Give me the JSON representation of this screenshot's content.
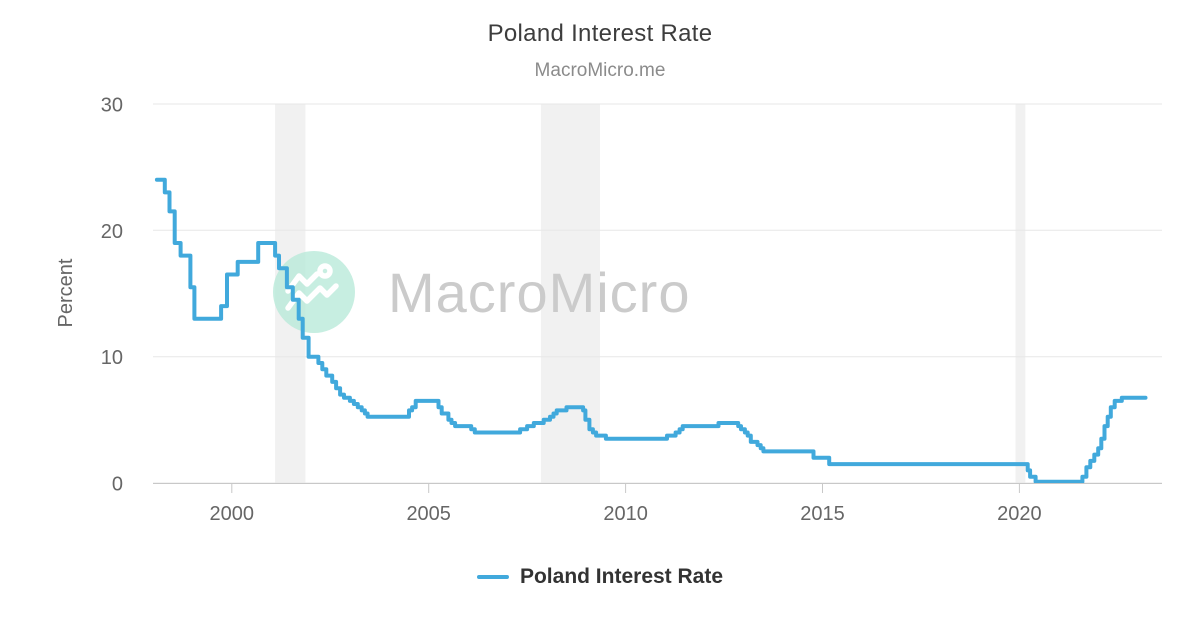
{
  "header": {
    "title": "Poland Interest Rate",
    "subtitle": "MacroMicro.me"
  },
  "watermark": {
    "brand": "MacroMicro",
    "circle_color": "#b7e9d9",
    "text_color": "#cbcbcb",
    "logo_stroke_color": "#ffffff"
  },
  "legend": {
    "items": [
      {
        "label": "Poland Interest Rate",
        "color": "#41a9dc"
      }
    ]
  },
  "colors": {
    "series_line": "#41a9dc",
    "gridline": "#e7e7e7",
    "axis_line": "#c8c8c8",
    "tick_mark": "#c8c8c8",
    "tick_label": "#666666",
    "recession_band": "#f1f1f1",
    "title": "#3d3d3d",
    "subtitle": "#8b8b8b"
  },
  "chart_data": {
    "type": "line",
    "title": "Poland Interest Rate",
    "subtitle": "MacroMicro.me",
    "xlabel": "",
    "ylabel": "Percent",
    "x_ticks": [
      2000,
      2005,
      2010,
      2015,
      2020
    ],
    "y_ticks": [
      0,
      10,
      20,
      30
    ],
    "xlim": [
      1998,
      2023.62
    ],
    "ylim": [
      0,
      30
    ],
    "grid": "horizontal",
    "legend_position": "bottom",
    "line_interpolation": "step-after",
    "shaded_periods": [
      {
        "start": 2001.1,
        "end": 2001.87
      },
      {
        "start": 2007.85,
        "end": 2009.35
      },
      {
        "start": 2019.9,
        "end": 2020.15
      }
    ],
    "series": [
      {
        "name": "Poland Interest Rate",
        "color": "#41a9dc",
        "unit": "percent",
        "points": [
          [
            1998.1,
            24.0
          ],
          [
            1998.3,
            23.0
          ],
          [
            1998.42,
            21.5
          ],
          [
            1998.55,
            19.0
          ],
          [
            1998.7,
            18.0
          ],
          [
            1998.95,
            15.5
          ],
          [
            1999.05,
            13.0
          ],
          [
            1999.73,
            14.0
          ],
          [
            1999.88,
            16.5
          ],
          [
            2000.15,
            17.5
          ],
          [
            2000.67,
            19.0
          ],
          [
            2001.1,
            18.0
          ],
          [
            2001.2,
            17.0
          ],
          [
            2001.4,
            15.5
          ],
          [
            2001.55,
            14.5
          ],
          [
            2001.7,
            13.0
          ],
          [
            2001.8,
            11.5
          ],
          [
            2001.95,
            10.0
          ],
          [
            2002.2,
            9.5
          ],
          [
            2002.3,
            9.0
          ],
          [
            2002.4,
            8.5
          ],
          [
            2002.55,
            8.0
          ],
          [
            2002.65,
            7.5
          ],
          [
            2002.75,
            7.0
          ],
          [
            2002.85,
            6.75
          ],
          [
            2003.0,
            6.5
          ],
          [
            2003.1,
            6.25
          ],
          [
            2003.2,
            6.0
          ],
          [
            2003.3,
            5.75
          ],
          [
            2003.38,
            5.5
          ],
          [
            2003.45,
            5.25
          ],
          [
            2004.5,
            5.75
          ],
          [
            2004.58,
            6.0
          ],
          [
            2004.67,
            6.5
          ],
          [
            2005.25,
            6.0
          ],
          [
            2005.33,
            5.5
          ],
          [
            2005.5,
            5.0
          ],
          [
            2005.58,
            4.75
          ],
          [
            2005.67,
            4.5
          ],
          [
            2006.08,
            4.25
          ],
          [
            2006.17,
            4.0
          ],
          [
            2007.32,
            4.25
          ],
          [
            2007.5,
            4.5
          ],
          [
            2007.67,
            4.75
          ],
          [
            2007.92,
            5.0
          ],
          [
            2008.08,
            5.25
          ],
          [
            2008.17,
            5.5
          ],
          [
            2008.25,
            5.75
          ],
          [
            2008.5,
            6.0
          ],
          [
            2008.92,
            5.75
          ],
          [
            2008.98,
            5.0
          ],
          [
            2009.08,
            4.25
          ],
          [
            2009.17,
            4.0
          ],
          [
            2009.25,
            3.75
          ],
          [
            2009.5,
            3.5
          ],
          [
            2011.05,
            3.75
          ],
          [
            2011.27,
            4.0
          ],
          [
            2011.37,
            4.25
          ],
          [
            2011.45,
            4.5
          ],
          [
            2012.36,
            4.75
          ],
          [
            2012.86,
            4.5
          ],
          [
            2012.93,
            4.25
          ],
          [
            2013.03,
            4.0
          ],
          [
            2013.1,
            3.75
          ],
          [
            2013.18,
            3.25
          ],
          [
            2013.35,
            3.0
          ],
          [
            2013.43,
            2.75
          ],
          [
            2013.5,
            2.5
          ],
          [
            2014.77,
            2.0
          ],
          [
            2015.17,
            1.5
          ],
          [
            2020.21,
            1.0
          ],
          [
            2020.27,
            0.5
          ],
          [
            2020.41,
            0.1
          ],
          [
            2021.6,
            0.5
          ],
          [
            2021.7,
            1.25
          ],
          [
            2021.8,
            1.75
          ],
          [
            2021.9,
            2.25
          ],
          [
            2022.0,
            2.75
          ],
          [
            2022.08,
            3.5
          ],
          [
            2022.16,
            4.5
          ],
          [
            2022.24,
            5.25
          ],
          [
            2022.32,
            6.0
          ],
          [
            2022.42,
            6.5
          ],
          [
            2022.6,
            6.75
          ],
          [
            2023.2,
            6.75
          ]
        ]
      }
    ]
  }
}
